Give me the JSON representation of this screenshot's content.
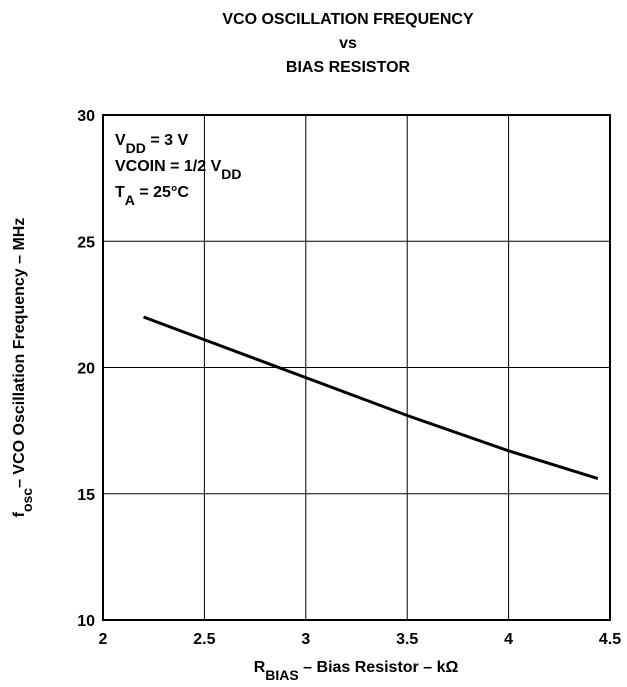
{
  "chart_data": {
    "type": "line",
    "title": [
      "VCO OSCILLATION FREQUENCY",
      "vs",
      "BIAS RESISTOR"
    ],
    "xlabel": [
      "R",
      "BIAS",
      " – Bias Resistor – kΩ"
    ],
    "ylabel": [
      "f",
      "osc",
      "– VCO Oscillation Frequency – MHz"
    ],
    "annotations": [
      [
        "V",
        "DD",
        " = 3 V"
      ],
      [
        "VCOIN = 1/2 V",
        "DD"
      ],
      [
        "T",
        "A",
        " = 25°C"
      ]
    ],
    "x": [
      2.2,
      2.5,
      3,
      3.5,
      4,
      4.44
    ],
    "series": [
      {
        "name": null,
        "color": "#000000",
        "values": [
          22,
          21.1,
          19.6,
          18.1,
          16.7,
          15.6
        ]
      }
    ],
    "xlim": [
      2,
      4.5
    ],
    "xticks": [
      2,
      2.5,
      3,
      3.5,
      4,
      4.5
    ],
    "ylim": [
      10,
      30
    ],
    "yticks": [
      10,
      15,
      20,
      25,
      30
    ],
    "grid": true
  }
}
